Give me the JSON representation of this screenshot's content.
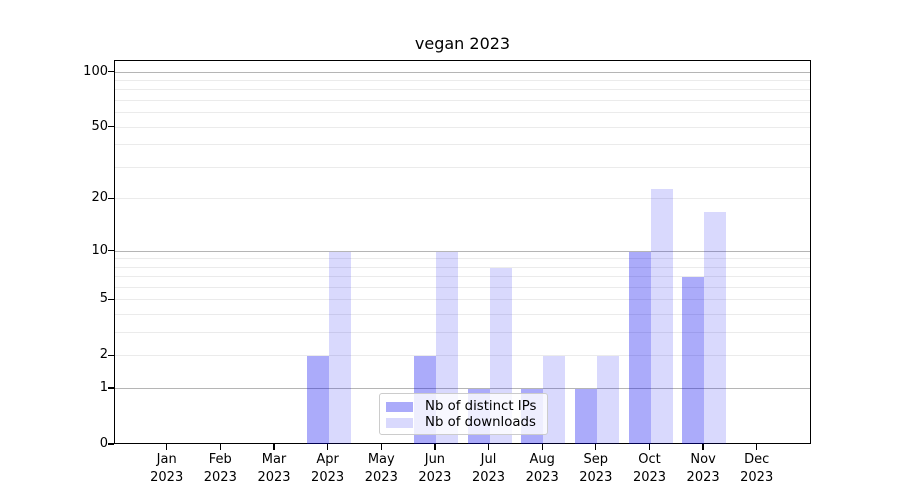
{
  "title": "vegan 2023",
  "legend": {
    "items": [
      {
        "label": "Nb of distinct IPs",
        "color_hex": "#aaaafa",
        "color_rgba": "rgba(0,0,240,0.33)"
      },
      {
        "label": "Nb of downloads",
        "color_hex": "#dadafa",
        "color_rgba": "rgba(0,0,240,0.15)"
      }
    ]
  },
  "y_axis": {
    "ticks": [
      {
        "value": 0,
        "label": "0"
      },
      {
        "value": 1,
        "label": "1"
      },
      {
        "value": 2,
        "label": "2"
      },
      {
        "value": 5,
        "label": "5"
      },
      {
        "value": 10,
        "label": "10"
      },
      {
        "value": 20,
        "label": "20"
      },
      {
        "value": 50,
        "label": "50"
      },
      {
        "value": 100,
        "label": "100"
      }
    ],
    "max_value": 115.6
  },
  "x_axis": {
    "months": [
      "Jan",
      "Feb",
      "Mar",
      "Apr",
      "May",
      "Jun",
      "Jul",
      "Aug",
      "Sep",
      "Oct",
      "Nov",
      "Dec"
    ],
    "year": "2023"
  },
  "chart_data": {
    "type": "bar",
    "title": "vegan 2023",
    "categories": [
      "Jan 2023",
      "Feb 2023",
      "Mar 2023",
      "Apr 2023",
      "May 2023",
      "Jun 2023",
      "Jul 2023",
      "Aug 2023",
      "Sep 2023",
      "Oct 2023",
      "Nov 2023",
      "Dec 2023"
    ],
    "series": [
      {
        "name": "Nb of distinct IPs",
        "values": [
          0,
          0,
          0,
          2,
          0,
          2,
          1,
          1,
          1,
          10,
          7,
          0
        ]
      },
      {
        "name": "Nb of downloads",
        "values": [
          0,
          0,
          0,
          10,
          0,
          10,
          8,
          2,
          2,
          23,
          17,
          0
        ]
      }
    ],
    "xlabel": "",
    "ylabel": "",
    "yscale": "log1p",
    "ylim": [
      0,
      115.6
    ],
    "yticks": [
      0,
      1,
      2,
      5,
      10,
      20,
      50,
      100
    ],
    "grid": "horizontal; darker gridlines at 1,10,100; faint minor gridlines at 2-9,20-90",
    "legend_position": "lower center inside plot"
  }
}
